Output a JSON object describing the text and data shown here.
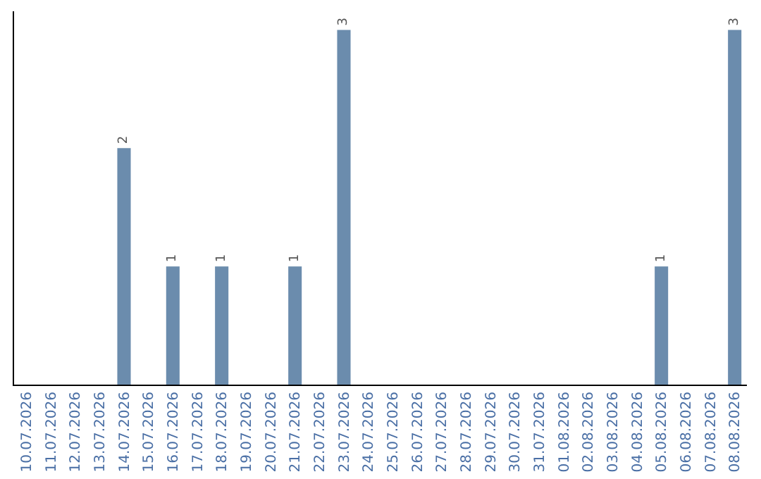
{
  "chart_data": {
    "type": "bar",
    "categories": [
      "10.07.2026",
      "11.07.2026",
      "12.07.2026",
      "13.07.2026",
      "14.07.2026",
      "15.07.2026",
      "16.07.2026",
      "17.07.2026",
      "18.07.2026",
      "19.07.2026",
      "20.07.2026",
      "21.07.2026",
      "22.07.2026",
      "23.07.2026",
      "24.07.2026",
      "25.07.2026",
      "26.07.2026",
      "27.07.2026",
      "28.07.2026",
      "29.07.2026",
      "30.07.2026",
      "31.07.2026",
      "01.08.2026",
      "02.08.2026",
      "03.08.2026",
      "04.08.2026",
      "05.08.2026",
      "06.08.2026",
      "07.08.2026",
      "08.08.2026"
    ],
    "values": [
      0,
      0,
      0,
      0,
      2,
      0,
      1,
      0,
      1,
      0,
      0,
      1,
      0,
      3,
      0,
      0,
      0,
      0,
      0,
      0,
      0,
      0,
      0,
      0,
      0,
      0,
      1,
      0,
      0,
      3
    ],
    "value_labels": [
      null,
      null,
      null,
      null,
      "2",
      null,
      "1",
      null,
      "1",
      null,
      null,
      "1",
      null,
      "3",
      null,
      null,
      null,
      null,
      null,
      null,
      null,
      null,
      null,
      null,
      null,
      null,
      "1",
      null,
      null,
      "3"
    ],
    "color": "#6b8cad",
    "tick_labels": "x",
    "legend": false
  }
}
